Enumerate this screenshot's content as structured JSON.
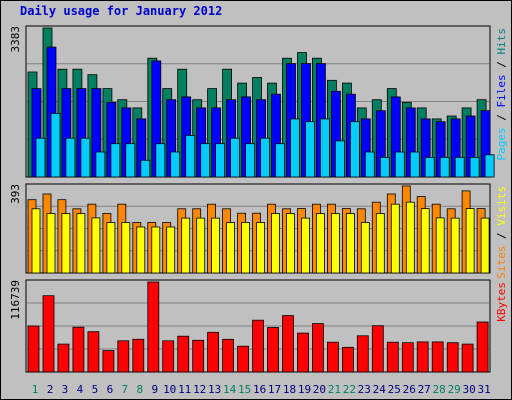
{
  "chart_data": {
    "type": "bar",
    "title": "Daily usage for January 2012",
    "days": [
      {
        "label": "1",
        "weekend": true
      },
      {
        "label": "2",
        "weekend": false
      },
      {
        "label": "3",
        "weekend": false
      },
      {
        "label": "4",
        "weekend": false
      },
      {
        "label": "5",
        "weekend": false
      },
      {
        "label": "6",
        "weekend": false
      },
      {
        "label": "7",
        "weekend": true
      },
      {
        "label": "8",
        "weekend": true
      },
      {
        "label": "9",
        "weekend": false
      },
      {
        "label": "10",
        "weekend": false
      },
      {
        "label": "11",
        "weekend": false
      },
      {
        "label": "12",
        "weekend": false
      },
      {
        "label": "13",
        "weekend": false
      },
      {
        "label": "14",
        "weekend": true
      },
      {
        "label": "15",
        "weekend": true
      },
      {
        "label": "16",
        "weekend": false
      },
      {
        "label": "17",
        "weekend": false
      },
      {
        "label": "18",
        "weekend": false
      },
      {
        "label": "19",
        "weekend": false
      },
      {
        "label": "20",
        "weekend": false
      },
      {
        "label": "21",
        "weekend": true
      },
      {
        "label": "22",
        "weekend": true
      },
      {
        "label": "23",
        "weekend": false
      },
      {
        "label": "24",
        "weekend": false
      },
      {
        "label": "25",
        "weekend": false
      },
      {
        "label": "26",
        "weekend": false
      },
      {
        "label": "27",
        "weekend": false
      },
      {
        "label": "28",
        "weekend": true
      },
      {
        "label": "29",
        "weekend": true
      },
      {
        "label": "30",
        "weekend": false
      },
      {
        "label": "31",
        "weekend": false
      }
    ],
    "panels": [
      {
        "id": "hits",
        "max_label": "3383",
        "ymax": 3383,
        "axis_labels": [
          {
            "text": "Pages",
            "color": "#00ccff"
          },
          {
            "text": " / ",
            "color": "#000000"
          },
          {
            "text": "Files",
            "color": "#0000ff"
          },
          {
            "text": " / ",
            "color": "#000000"
          },
          {
            "text": "Hits",
            "color": "#008080"
          }
        ],
        "series": [
          {
            "name": "Hits",
            "color": "#008060",
            "values": [
              2384,
              3383,
              2447,
              2447,
              2322,
              2008,
              1756,
              1568,
              2698,
              2008,
              2447,
              1756,
              2008,
              2447,
              2133,
              2259,
              2133,
              2698,
              2824,
              2698,
              2196,
              2133,
              1568,
              1756,
              2008,
              1693,
              1568,
              1319,
              1384,
              1568,
              1756
            ]
          },
          {
            "name": "Files",
            "color": "#0000ff",
            "values": [
              2008,
              2950,
              2008,
              2008,
              2008,
              1693,
              1568,
              1319,
              2636,
              1756,
              1819,
              1568,
              1569,
              1756,
              1819,
              1756,
              1881,
              2574,
              2574,
              2574,
              1945,
              1881,
              1319,
              1506,
              1819,
              1568,
              1319,
              1255,
              1319,
              1384,
              1506
            ]
          },
          {
            "name": "Pages",
            "color": "#00ccff",
            "values": [
              881,
              1444,
              881,
              881,
              568,
              756,
              756,
              380,
              756,
              568,
              944,
              756,
              756,
              881,
              756,
              881,
              756,
              1319,
              1255,
              1319,
              820,
              1255,
              568,
              444,
              568,
              568,
              444,
              444,
              444,
              444,
              504
            ]
          }
        ]
      },
      {
        "id": "visits",
        "max_label": "393",
        "ymax": 393,
        "axis_labels": [
          {
            "text": "Sites",
            "color": "#ff8000"
          },
          {
            "text": " / ",
            "color": "#000000"
          },
          {
            "text": "Visits",
            "color": "#ffff00"
          }
        ],
        "series": [
          {
            "name": "Visits",
            "color": "#ff8800",
            "values": [
              331,
              357,
              331,
              290,
              311,
              269,
              311,
              228,
              228,
              228,
              290,
              290,
              311,
              290,
              270,
              270,
              311,
              290,
              291,
              311,
              311,
              291,
              290,
              320,
              357,
              393,
              345,
              311,
              290,
              371,
              291
            ]
          },
          {
            "name": "Sites",
            "color": "#ffff00",
            "values": [
              290,
              269,
              269,
              269,
              249,
              228,
              228,
              208,
              208,
              208,
              248,
              248,
              248,
              228,
              228,
              228,
              269,
              269,
              248,
              269,
              269,
              269,
              228,
              269,
              311,
              320,
              291,
              249,
              248,
              291,
              248
            ]
          }
        ]
      },
      {
        "id": "kbytes",
        "max_label": "116739",
        "ymax": 116739,
        "axis_labels": [
          {
            "text": "KBytes",
            "color": "#ff0000"
          }
        ],
        "series": [
          {
            "name": "KBytes",
            "color": "#ff0000",
            "values": [
              59622,
              99016,
              36200,
              58156,
              52302,
              27810,
              40532,
              42400,
              116739,
              40532,
              46400,
              41110,
              51540,
              42400,
              33500,
              67200,
              57700,
              73100,
              50500,
              62800,
              38700,
              32000,
              47000,
              60000,
              38700,
              38000,
              39000,
              39000,
              38000,
              36200,
              64800
            ]
          }
        ]
      }
    ]
  }
}
